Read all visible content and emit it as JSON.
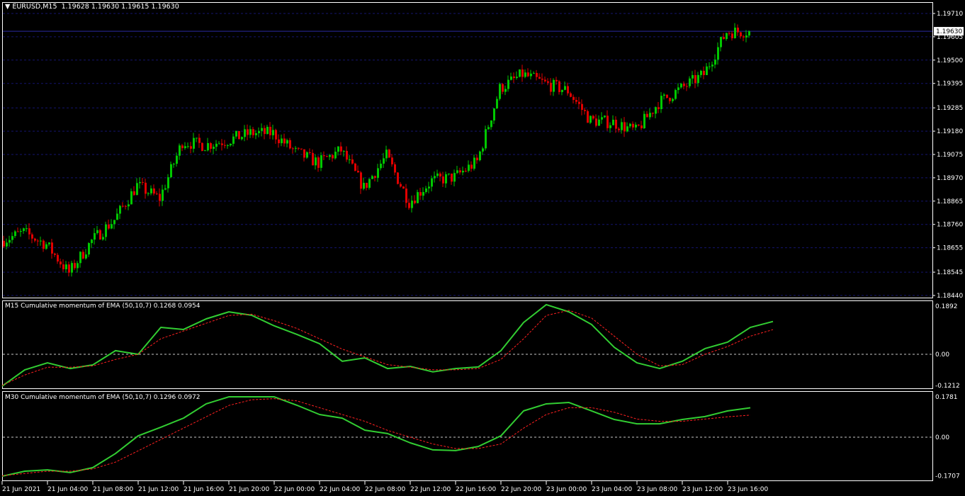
{
  "header": {
    "symbol": "EURUSD,M15",
    "ohlc": "1.19628 1.19630 1.19615 1.19630",
    "menu_icon": "triangle-down-icon"
  },
  "colors": {
    "bull": "#00c800",
    "bear": "#e00000",
    "grid": "#14146e",
    "indicator": "#32cd32",
    "signal": "#ff2020",
    "axis": "#ffffff"
  },
  "current_price": "1.19630",
  "price_axis": [
    "1.19710",
    "1.19605",
    "1.19500",
    "1.19395",
    "1.19285",
    "1.19180",
    "1.19075",
    "1.18970",
    "1.18865",
    "1.18760",
    "1.18655",
    "1.18545",
    "1.18440"
  ],
  "time_axis": [
    "21 Jun 2021",
    "21 Jun 04:00",
    "21 Jun 08:00",
    "21 Jun 12:00",
    "21 Jun 16:00",
    "21 Jun 20:00",
    "22 Jun 00:00",
    "22 Jun 04:00",
    "22 Jun 08:00",
    "22 Jun 12:00",
    "22 Jun 16:00",
    "22 Jun 20:00",
    "23 Jun 00:00",
    "23 Jun 04:00",
    "23 Jun 08:00",
    "23 Jun 12:00",
    "23 Jun 16:00"
  ],
  "chart_data": [
    {
      "type": "candlestick",
      "title": "EURUSD,M15",
      "x_interval": "2h",
      "x_start": "21 Jun 2021 00:00",
      "ylim": [
        1.1844,
        1.1971
      ],
      "closes": [
        1.18686,
        1.18724,
        1.1867,
        1.18542,
        1.18686,
        1.18781,
        1.18935,
        1.18877,
        1.19132,
        1.19117,
        1.19139,
        1.19171,
        1.19171,
        1.19085,
        1.19037,
        1.19094,
        1.18925,
        1.19069,
        1.18861,
        1.18957,
        1.18973,
        1.19043,
        1.19372,
        1.19436,
        1.19394,
        1.19362,
        1.19228,
        1.19219,
        1.1918,
        1.19308,
        1.19372,
        1.19436,
        1.19627,
        1.1963
      ]
    },
    {
      "type": "line",
      "title": "M15 Cumulative momentum of EMA (50,10,7) 0.1268 0.0954",
      "ylim": [
        -0.1212,
        0.1892
      ],
      "ticks": [
        "0.1892",
        "0.00",
        "-0.1212"
      ],
      "series": [
        {
          "values": [
            -0.123,
            -0.06,
            -0.033,
            -0.055,
            -0.041,
            0.014,
            0.0,
            0.104,
            0.096,
            0.137,
            0.164,
            0.151,
            0.11,
            0.077,
            0.041,
            -0.027,
            -0.014,
            -0.055,
            -0.047,
            -0.068,
            -0.055,
            -0.049,
            0.014,
            0.123,
            0.192,
            0.164,
            0.115,
            0.027,
            -0.033,
            -0.055,
            -0.027,
            0.022,
            0.047,
            0.104,
            0.1268
          ]
        },
        {
          "values": [
            -0.12,
            -0.08,
            -0.05,
            -0.05,
            -0.045,
            -0.02,
            0.0,
            0.06,
            0.09,
            0.12,
            0.15,
            0.155,
            0.13,
            0.1,
            0.06,
            0.02,
            -0.01,
            -0.04,
            -0.05,
            -0.06,
            -0.06,
            -0.055,
            -0.02,
            0.06,
            0.15,
            0.17,
            0.14,
            0.07,
            0.0,
            -0.045,
            -0.04,
            0.0,
            0.03,
            0.07,
            0.0954
          ]
        }
      ]
    },
    {
      "type": "line",
      "title": "M30 Cumulative momentum of EMA (50,10,7) 0.1296 0.0972",
      "ylim": [
        -0.1707,
        0.1781
      ],
      "ticks": [
        "0.1781",
        "0.00",
        "-0.1707"
      ],
      "series": [
        {
          "values": [
            -0.172,
            -0.15,
            -0.144,
            -0.156,
            -0.134,
            -0.072,
            0.006,
            0.044,
            0.084,
            0.147,
            0.178,
            0.178,
            0.178,
            0.141,
            0.1,
            0.084,
            0.031,
            0.016,
            -0.025,
            -0.056,
            -0.059,
            -0.041,
            0.006,
            0.116,
            0.147,
            0.153,
            0.116,
            0.078,
            0.059,
            0.059,
            0.078,
            0.091,
            0.116,
            0.1296
          ]
        },
        {
          "values": [
            -0.17,
            -0.16,
            -0.15,
            -0.15,
            -0.14,
            -0.11,
            -0.06,
            -0.01,
            0.04,
            0.09,
            0.14,
            0.165,
            0.17,
            0.16,
            0.13,
            0.1,
            0.07,
            0.03,
            0.0,
            -0.03,
            -0.05,
            -0.05,
            -0.03,
            0.04,
            0.1,
            0.13,
            0.13,
            0.11,
            0.08,
            0.07,
            0.07,
            0.08,
            0.09,
            0.0972
          ]
        }
      ]
    }
  ]
}
